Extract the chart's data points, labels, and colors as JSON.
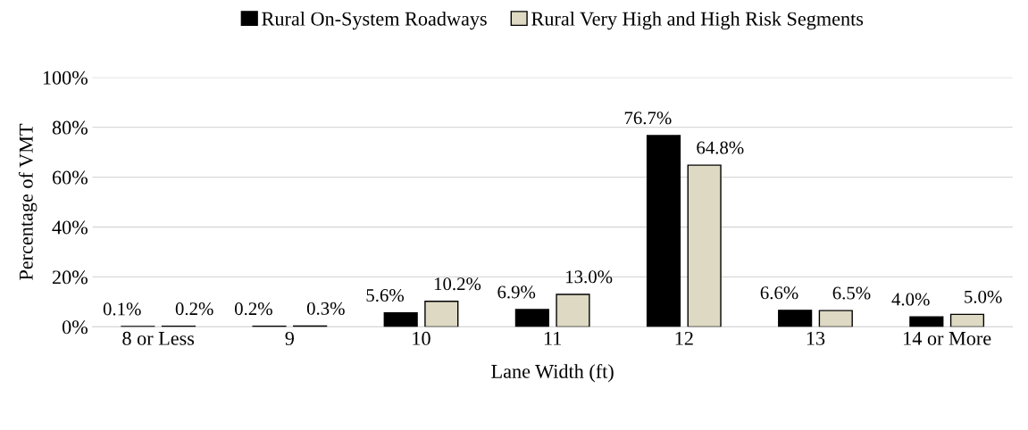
{
  "chart_data": {
    "type": "bar",
    "xlabel": "Lane Width (ft)",
    "ylabel": "Percentage of VMT",
    "categories": [
      "8 or Less",
      "9",
      "10",
      "11",
      "12",
      "13",
      "14 or More"
    ],
    "series": [
      {
        "name": "Rural On-System Roadways",
        "color": "#000000",
        "values": [
          0.1,
          0.2,
          5.6,
          6.9,
          76.7,
          6.6,
          4.0
        ],
        "value_labels": [
          "0.1%",
          "0.2%",
          "5.6%",
          "6.9%",
          "76.7%",
          "6.6%",
          "4.0%"
        ]
      },
      {
        "name": "Rural Very High and High Risk Segments",
        "color": "#ddd9c3",
        "values": [
          0.2,
          0.3,
          10.2,
          13.0,
          64.8,
          6.5,
          5.0
        ],
        "value_labels": [
          "0.2%",
          "0.3%",
          "10.2%",
          "13.0%",
          "64.8%",
          "6.5%",
          "5.0%"
        ]
      }
    ],
    "ylim": [
      0,
      100
    ],
    "yticks": [
      {
        "value": 0,
        "label": "0%"
      },
      {
        "value": 20,
        "label": "20%"
      },
      {
        "value": 40,
        "label": "40%"
      },
      {
        "value": 60,
        "label": "60%"
      },
      {
        "value": 80,
        "label": "80%"
      },
      {
        "value": 100,
        "label": "100%"
      }
    ],
    "grid": "y",
    "legend": "top"
  }
}
